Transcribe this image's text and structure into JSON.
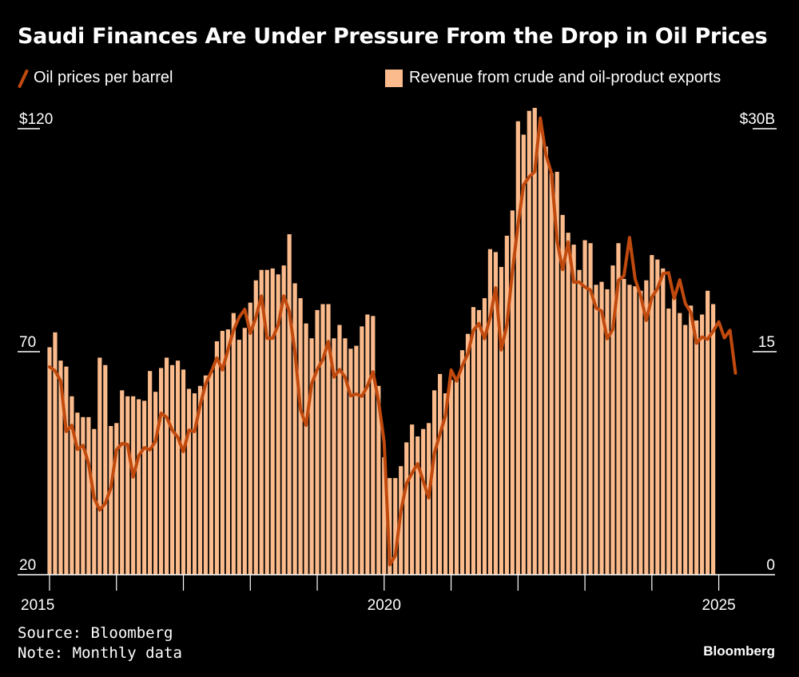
{
  "colors": {
    "bars": "#fbbb8c",
    "line": "#c0490e",
    "axis": "#ffffff"
  },
  "source": "Source: Bloomberg",
  "note": "Note: Monthly data",
  "brand": "Bloomberg",
  "chart_data": {
    "type": "bar+line",
    "title": "Saudi Finances Are Under Pressure From the Drop in Oil Prices",
    "start": "2015-01",
    "frequency": "monthly",
    "legend": {
      "line": "Oil prices per barrel",
      "bars": "Revenue from crude and oil-product exports",
      "placement": "top"
    },
    "left_axis": {
      "ticks": [
        "$120",
        "70",
        "20"
      ],
      "tick_values": [
        120,
        70,
        20
      ],
      "range": [
        20,
        120
      ]
    },
    "right_axis": {
      "ticks": [
        "$30B",
        "15",
        "0"
      ],
      "tick_values": [
        30,
        15,
        0
      ],
      "range": [
        0,
        30
      ]
    },
    "x_ticks": [
      "2015",
      "2020",
      "2025"
    ],
    "x_tick_index": [
      0,
      60,
      120
    ],
    "series": [
      {
        "name": "Revenue from crude and oil-product exports",
        "type": "bar",
        "axis": "right",
        "unit": "$B",
        "values": [
          15.3,
          16.3,
          14.4,
          14.0,
          12.0,
          10.9,
          10.6,
          10.6,
          9.8,
          14.6,
          14.1,
          10.0,
          10.2,
          12.4,
          12.0,
          12.0,
          11.8,
          11.7,
          13.7,
          12.3,
          13.9,
          14.6,
          14.1,
          14.4,
          13.8,
          12.5,
          12.2,
          12.7,
          13.4,
          13.6,
          15.7,
          16.4,
          16.5,
          17.6,
          15.8,
          16.6,
          18.3,
          19.8,
          20.5,
          20.5,
          20.6,
          20.2,
          20.8,
          22.9,
          19.6,
          18.6,
          16.9,
          15.9,
          17.8,
          18.2,
          18.2,
          15.9,
          16.8,
          15.9,
          15.2,
          15.4,
          16.7,
          17.5,
          17.4,
          12.7,
          7.9,
          6.5,
          6.5,
          7.3,
          8.9,
          10.1,
          9.3,
          9.8,
          10.2,
          12.4,
          13.5,
          12.2,
          13.1,
          13.1,
          15.1,
          16.2,
          18.0,
          17.8,
          18.6,
          21.9,
          21.7,
          20.7,
          22.8,
          24.5,
          30.5,
          29.6,
          31.2,
          31.4,
          30.5,
          28.8,
          27.0,
          27.1,
          24.2,
          23.0,
          22.2,
          20.5,
          22.5,
          22.3,
          19.5,
          19.7,
          19.2,
          20.8,
          22.3,
          19.9,
          19.5,
          19.4,
          19.1,
          19.8,
          21.5,
          21.2,
          20.6,
          17.9,
          18.6,
          17.6,
          16.8,
          18.1,
          17.1,
          17.5,
          19.1,
          18.2
        ]
      },
      {
        "name": "Oil prices per barrel",
        "type": "line",
        "axis": "left",
        "unit": "$",
        "values": [
          66.6,
          65.7,
          63.4,
          52.1,
          53.5,
          48.1,
          49.0,
          44.9,
          37.2,
          34.5,
          36.0,
          39.5,
          48.0,
          49.4,
          49.2,
          41.9,
          46.7,
          48.5,
          48.0,
          49.9,
          56.2,
          55.3,
          52.4,
          50.8,
          47.6,
          52.4,
          52.1,
          58.0,
          62.8,
          65.5,
          68.6,
          65.9,
          70.5,
          74.8,
          77.7,
          79.5,
          74.1,
          77.7,
          82.5,
          73.0,
          73.0,
          76.0,
          82.5,
          79.0,
          70.0,
          57.0,
          53.5,
          62.8,
          66.0,
          68.2,
          72.3,
          64.3,
          66.0,
          64.3,
          60.1,
          60.5,
          60.0,
          62.3,
          65.5,
          58.9,
          49.7,
          22.2,
          24.3,
          34.2,
          40.4,
          42.8,
          44.9,
          41.0,
          37.2,
          47.2,
          51.5,
          55.7,
          65.9,
          63.4,
          66.8,
          69.5,
          74.8,
          76.3,
          72.9,
          77.7,
          84.3,
          70.4,
          76.0,
          88.0,
          98.4,
          107.4,
          109.2,
          110.4,
          122.4,
          114.2,
          110.0,
          94.9,
          88.4,
          94.6,
          85.6,
          85.6,
          84.5,
          83.8,
          79.8,
          79.1,
          72.9,
          75.0,
          86.0,
          87.0,
          95.6,
          86.3,
          82.5,
          77.0,
          82.2,
          84.1,
          87.5,
          87.7,
          81.9,
          86.1,
          80.8,
          78.8,
          71.9,
          73.3,
          72.8,
          74.6,
          76.7,
          73.1,
          74.8,
          65.2
        ]
      }
    ]
  }
}
